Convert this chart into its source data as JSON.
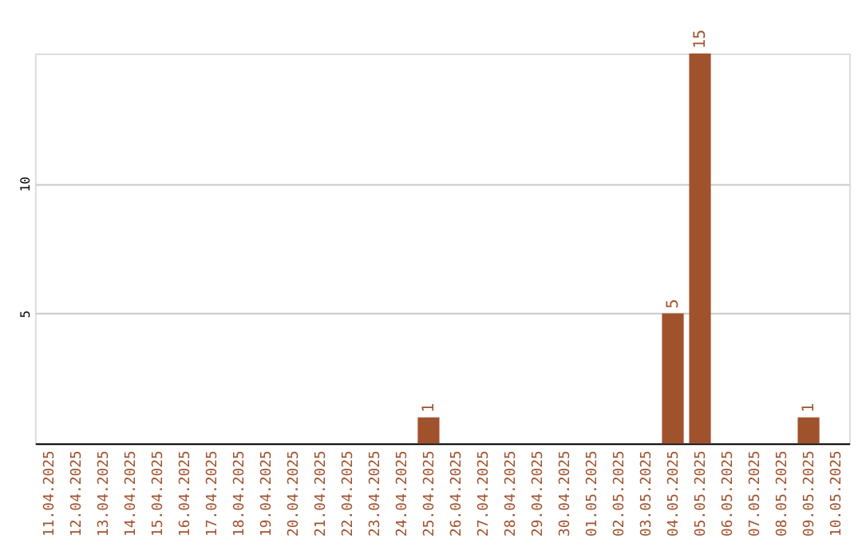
{
  "chart_data": {
    "type": "bar",
    "categories": [
      "11.04.2025",
      "12.04.2025",
      "13.04.2025",
      "14.04.2025",
      "15.04.2025",
      "16.04.2025",
      "17.04.2025",
      "18.04.2025",
      "19.04.2025",
      "20.04.2025",
      "21.04.2025",
      "22.04.2025",
      "23.04.2025",
      "24.04.2025",
      "25.04.2025",
      "26.04.2025",
      "27.04.2025",
      "28.04.2025",
      "29.04.2025",
      "30.04.2025",
      "01.05.2025",
      "02.05.2025",
      "03.05.2025",
      "04.05.2025",
      "05.05.2025",
      "06.05.2025",
      "07.05.2025",
      "08.05.2025",
      "09.05.2025",
      "10.05.2025"
    ],
    "values": [
      0,
      0,
      0,
      0,
      0,
      0,
      0,
      0,
      0,
      0,
      0,
      0,
      0,
      0,
      1,
      0,
      0,
      0,
      0,
      0,
      0,
      0,
      0,
      5,
      15,
      0,
      0,
      0,
      1,
      0
    ],
    "value_labels": [
      null,
      null,
      null,
      null,
      null,
      null,
      null,
      null,
      null,
      null,
      null,
      null,
      null,
      null,
      "1",
      null,
      null,
      null,
      null,
      null,
      null,
      null,
      null,
      "5",
      "15",
      null,
      null,
      null,
      "1",
      null
    ],
    "color": "#a0522d",
    "ylim": [
      0,
      15
    ],
    "yticks": [
      5,
      10
    ],
    "grid": "y"
  }
}
